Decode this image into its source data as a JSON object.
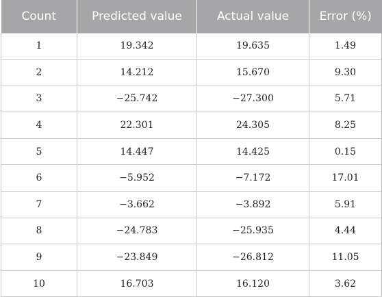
{
  "table": {
    "headers": [
      "Count",
      "Predicted value",
      "Actual value",
      "Error (%)"
    ],
    "rows": [
      [
        "1",
        "19.342",
        "19.635",
        "1.49"
      ],
      [
        "2",
        "14.212",
        "15.670",
        "9.30"
      ],
      [
        "3",
        "−25.742",
        "−27.300",
        "5.71"
      ],
      [
        "4",
        "22.301",
        "24.305",
        "8.25"
      ],
      [
        "5",
        "14.447",
        "14.425",
        "0.15"
      ],
      [
        "6",
        "−5.952",
        "−7.172",
        "17.01"
      ],
      [
        "7",
        "−3.662",
        "−3.892",
        "5.91"
      ],
      [
        "8",
        "−24.783",
        "−25.935",
        "4.44"
      ],
      [
        "9",
        "−23.849",
        "−26.812",
        "11.05"
      ],
      [
        "10",
        "16.703",
        "16.120",
        "3.62"
      ]
    ]
  },
  "colors": {
    "header_background": "#a6a6a8",
    "header_text": "#ffffff",
    "grid_line": "#c8c8c8"
  }
}
